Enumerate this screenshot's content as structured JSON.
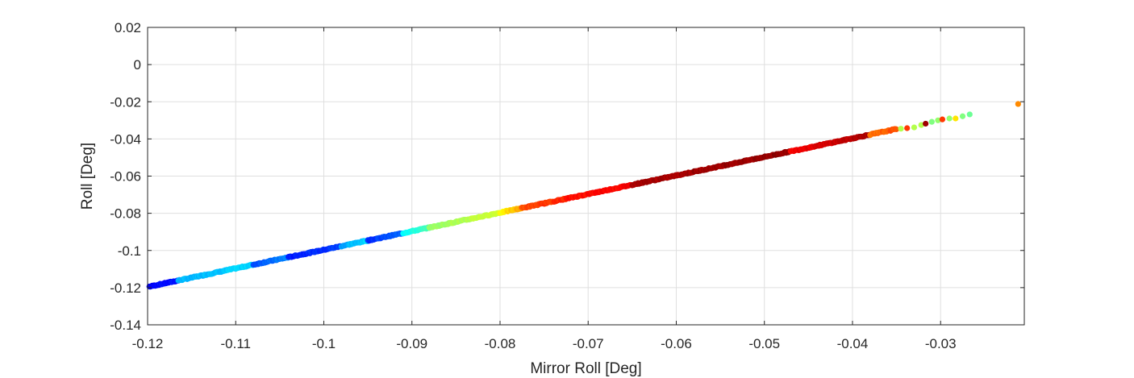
{
  "chart_data": {
    "type": "scatter",
    "title": "",
    "xlabel": "Mirror Roll [Deg]",
    "ylabel": "Roll [Deg]",
    "xlim": [
      -0.12,
      -0.0205
    ],
    "ylim": [
      -0.14,
      0.02
    ],
    "xticks": [
      -0.12,
      -0.11,
      -0.1,
      -0.09,
      -0.08,
      -0.07,
      -0.06,
      -0.05,
      -0.04,
      -0.03
    ],
    "xtick_labels": [
      "-0.12",
      "-0.11",
      "-0.1",
      "-0.09",
      "-0.08",
      "-0.07",
      "-0.06",
      "-0.05",
      "-0.04",
      "-0.03"
    ],
    "yticks": [
      0.02,
      0,
      -0.02,
      -0.04,
      -0.06,
      -0.08,
      -0.1,
      -0.12,
      -0.14
    ],
    "ytick_labels": [
      "0.02",
      "0",
      "-0.02",
      "-0.04",
      "-0.06",
      "-0.08",
      "-0.1",
      "-0.12",
      "-0.14"
    ],
    "grid": true,
    "colormap": "jet",
    "segments": [
      {
        "x_start": -0.1198,
        "x_end": -0.1165,
        "color_start": 0.12,
        "color_end": 0.15
      },
      {
        "x_start": -0.1165,
        "x_end": -0.108,
        "color_start": 0.3,
        "color_end": 0.34
      },
      {
        "x_start": -0.108,
        "x_end": -0.104,
        "color_start": 0.2,
        "color_end": 0.26
      },
      {
        "x_start": -0.104,
        "x_end": -0.098,
        "color_start": 0.15,
        "color_end": 0.19
      },
      {
        "x_start": -0.098,
        "x_end": -0.095,
        "color_start": 0.28,
        "color_end": 0.34
      },
      {
        "x_start": -0.095,
        "x_end": -0.091,
        "color_start": 0.17,
        "color_end": 0.22
      },
      {
        "x_start": -0.091,
        "x_end": -0.088,
        "color_start": 0.38,
        "color_end": 0.44
      },
      {
        "x_start": -0.088,
        "x_end": -0.08,
        "color_start": 0.52,
        "color_end": 0.58
      },
      {
        "x_start": -0.08,
        "x_end": -0.0775,
        "color_start": 0.62,
        "color_end": 0.72
      },
      {
        "x_start": -0.0775,
        "x_end": -0.0725,
        "color_start": 0.8,
        "color_end": 0.84
      },
      {
        "x_start": -0.0725,
        "x_end": -0.065,
        "color_start": 0.86,
        "color_end": 0.88
      },
      {
        "x_start": -0.065,
        "x_end": -0.047,
        "color_start": 0.96,
        "color_end": 0.98
      },
      {
        "x_start": -0.047,
        "x_end": -0.042,
        "color_start": 0.88,
        "color_end": 0.92
      },
      {
        "x_start": -0.042,
        "x_end": -0.038,
        "color_start": 0.93,
        "color_end": 0.96
      },
      {
        "x_start": -0.038,
        "x_end": -0.035,
        "color_start": 0.76,
        "color_end": 0.8
      }
    ],
    "points": [
      {
        "x": -0.0345,
        "y": -0.0345,
        "c": 0.55
      },
      {
        "x": -0.0338,
        "y": -0.0342,
        "c": 0.82
      },
      {
        "x": -0.033,
        "y": -0.0338,
        "c": 0.55
      },
      {
        "x": -0.0322,
        "y": -0.0325,
        "c": 0.55
      },
      {
        "x": -0.0317,
        "y": -0.0318,
        "c": 0.97
      },
      {
        "x": -0.031,
        "y": -0.0308,
        "c": 0.5
      },
      {
        "x": -0.0303,
        "y": -0.03,
        "c": 0.52
      },
      {
        "x": -0.0298,
        "y": -0.0295,
        "c": 0.82
      },
      {
        "x": -0.029,
        "y": -0.029,
        "c": 0.52
      },
      {
        "x": -0.0283,
        "y": -0.029,
        "c": 0.65
      },
      {
        "x": -0.0275,
        "y": -0.0278,
        "c": 0.5
      },
      {
        "x": -0.0267,
        "y": -0.0268,
        "c": 0.48
      },
      {
        "x": -0.0212,
        "y": -0.0212,
        "c": 0.74
      }
    ],
    "trend": {
      "slope": 0.9995,
      "intercept": 0.0003
    }
  }
}
